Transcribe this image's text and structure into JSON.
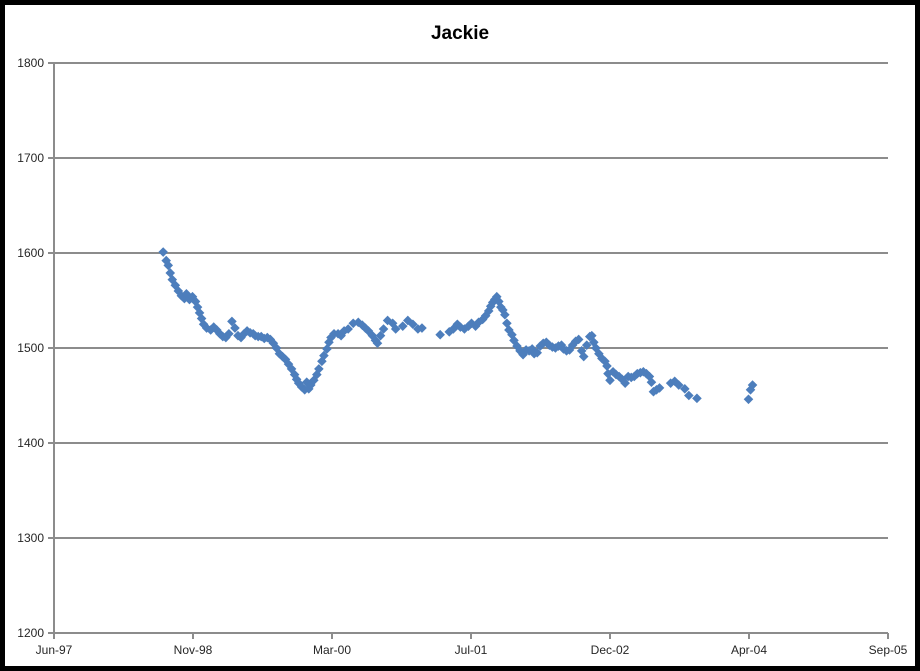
{
  "title": "Jackie",
  "colors": {
    "marker": "#4D7EBC",
    "grid": "#8C8C8C",
    "axis": "#8C8C8C",
    "text": "#262626",
    "frame": "#000000",
    "background": "#FFFFFF"
  },
  "chart_data": {
    "type": "scatter",
    "title": "Jackie",
    "xlabel": "",
    "ylabel": "",
    "legend": "none",
    "marker": "diamond",
    "grid": "horizontal",
    "x_tick_labels": [
      "Jun-97",
      "Nov-98",
      "Mar-00",
      "Jul-01",
      "Dec-02",
      "Apr-04",
      "Sep-05"
    ],
    "y_tick_labels": [
      "1200",
      "1300",
      "1400",
      "1500",
      "1600",
      "1700",
      "1800"
    ],
    "y_ticks": [
      1200,
      1300,
      1400,
      1500,
      1600,
      1700,
      1800
    ],
    "ylim": [
      1200,
      1800
    ],
    "xlim": [
      1997.42,
      2005.67
    ],
    "series": [
      {
        "name": "Jackie",
        "points": [
          [
            1998.5,
            1601
          ],
          [
            1998.53,
            1592
          ],
          [
            1998.55,
            1587
          ],
          [
            1998.57,
            1579
          ],
          [
            1998.59,
            1572
          ],
          [
            1998.62,
            1566
          ],
          [
            1998.65,
            1560
          ],
          [
            1998.68,
            1555
          ],
          [
            1998.71,
            1552
          ],
          [
            1998.73,
            1557
          ],
          [
            1998.76,
            1551
          ],
          [
            1998.79,
            1554
          ],
          [
            1998.82,
            1549
          ],
          [
            1998.84,
            1543
          ],
          [
            1998.86,
            1537
          ],
          [
            1998.88,
            1531
          ],
          [
            1998.9,
            1525
          ],
          [
            1998.93,
            1521
          ],
          [
            1998.97,
            1519
          ],
          [
            1999.0,
            1522
          ],
          [
            1999.03,
            1519
          ],
          [
            1999.06,
            1515
          ],
          [
            1999.09,
            1512
          ],
          [
            1999.12,
            1511
          ],
          [
            1999.15,
            1515
          ],
          [
            1999.18,
            1528
          ],
          [
            1999.21,
            1521
          ],
          [
            1999.24,
            1513
          ],
          [
            1999.27,
            1511
          ],
          [
            1999.3,
            1515
          ],
          [
            1999.33,
            1518
          ],
          [
            1999.36,
            1516
          ],
          [
            1999.39,
            1515
          ],
          [
            1999.41,
            1513
          ],
          [
            1999.44,
            1512
          ],
          [
            1999.47,
            1512
          ],
          [
            1999.5,
            1510
          ],
          [
            1999.53,
            1511
          ],
          [
            1999.56,
            1509
          ],
          [
            1999.59,
            1505
          ],
          [
            1999.62,
            1500
          ],
          [
            1999.65,
            1494
          ],
          [
            1999.68,
            1491
          ],
          [
            1999.71,
            1488
          ],
          [
            1999.74,
            1483
          ],
          [
            1999.77,
            1478
          ],
          [
            1999.8,
            1472
          ],
          [
            1999.82,
            1467
          ],
          [
            1999.84,
            1463
          ],
          [
            1999.87,
            1459
          ],
          [
            1999.9,
            1456
          ],
          [
            1999.92,
            1464
          ],
          [
            1999.94,
            1457
          ],
          [
            1999.96,
            1461
          ],
          [
            1999.99,
            1466
          ],
          [
            2000.02,
            1472
          ],
          [
            2000.04,
            1478
          ],
          [
            2000.07,
            1486
          ],
          [
            2000.09,
            1492
          ],
          [
            2000.12,
            1499
          ],
          [
            2000.14,
            1506
          ],
          [
            2000.16,
            1511
          ],
          [
            2000.19,
            1515
          ],
          [
            2000.23,
            1515
          ],
          [
            2000.26,
            1513
          ],
          [
            2000.29,
            1518
          ],
          [
            2000.33,
            1520
          ],
          [
            2000.38,
            1526
          ],
          [
            2000.43,
            1527
          ],
          [
            2000.47,
            1524
          ],
          [
            2000.5,
            1521
          ],
          [
            2000.53,
            1518
          ],
          [
            2000.57,
            1513
          ],
          [
            2000.6,
            1508
          ],
          [
            2000.62,
            1505
          ],
          [
            2000.65,
            1513
          ],
          [
            2000.68,
            1520
          ],
          [
            2000.72,
            1529
          ],
          [
            2000.77,
            1526
          ],
          [
            2000.8,
            1520
          ],
          [
            2000.87,
            1523
          ],
          [
            2000.92,
            1529
          ],
          [
            2000.97,
            1525
          ],
          [
            2001.02,
            1520
          ],
          [
            2001.06,
            1521
          ],
          [
            2001.24,
            1514
          ],
          [
            2001.33,
            1517
          ],
          [
            2001.37,
            1520
          ],
          [
            2001.41,
            1525
          ],
          [
            2001.44,
            1522
          ],
          [
            2001.48,
            1520
          ],
          [
            2001.52,
            1523
          ],
          [
            2001.55,
            1526
          ],
          [
            2001.59,
            1523
          ],
          [
            2001.62,
            1527
          ],
          [
            2001.66,
            1530
          ],
          [
            2001.69,
            1534
          ],
          [
            2001.72,
            1539
          ],
          [
            2001.74,
            1544
          ],
          [
            2001.76,
            1548
          ],
          [
            2001.78,
            1551
          ],
          [
            2001.8,
            1554
          ],
          [
            2001.82,
            1549
          ],
          [
            2001.84,
            1543
          ],
          [
            2001.86,
            1540
          ],
          [
            2001.88,
            1535
          ],
          [
            2001.9,
            1526
          ],
          [
            2001.92,
            1519
          ],
          [
            2001.95,
            1514
          ],
          [
            2001.97,
            1508
          ],
          [
            2002.0,
            1502
          ],
          [
            2002.03,
            1497
          ],
          [
            2002.06,
            1493
          ],
          [
            2002.09,
            1498
          ],
          [
            2002.12,
            1497
          ],
          [
            2002.15,
            1499
          ],
          [
            2002.17,
            1494
          ],
          [
            2002.2,
            1495
          ],
          [
            2002.23,
            1502
          ],
          [
            2002.26,
            1505
          ],
          [
            2002.29,
            1506
          ],
          [
            2002.32,
            1503
          ],
          [
            2002.35,
            1501
          ],
          [
            2002.38,
            1500
          ],
          [
            2002.41,
            1502
          ],
          [
            2002.44,
            1503
          ],
          [
            2002.46,
            1499
          ],
          [
            2002.49,
            1497
          ],
          [
            2002.52,
            1498
          ],
          [
            2002.55,
            1503
          ],
          [
            2002.58,
            1507
          ],
          [
            2002.61,
            1509
          ],
          [
            2002.64,
            1497
          ],
          [
            2002.66,
            1491
          ],
          [
            2002.69,
            1503
          ],
          [
            2002.72,
            1512
          ],
          [
            2002.74,
            1513
          ],
          [
            2002.76,
            1506
          ],
          [
            2002.78,
            1500
          ],
          [
            2002.81,
            1494
          ],
          [
            2002.84,
            1489
          ],
          [
            2002.87,
            1486
          ],
          [
            2002.89,
            1481
          ],
          [
            2002.9,
            1473
          ],
          [
            2002.92,
            1466
          ],
          [
            2002.95,
            1475
          ],
          [
            2002.98,
            1472
          ],
          [
            2003.01,
            1470
          ],
          [
            2003.04,
            1467
          ],
          [
            2003.07,
            1463
          ],
          [
            2003.1,
            1470
          ],
          [
            2003.13,
            1469
          ],
          [
            2003.16,
            1470
          ],
          [
            2003.19,
            1473
          ],
          [
            2003.22,
            1474
          ],
          [
            2003.25,
            1475
          ],
          [
            2003.28,
            1473
          ],
          [
            2003.31,
            1470
          ],
          [
            2003.33,
            1464
          ],
          [
            2003.35,
            1454
          ],
          [
            2003.38,
            1456
          ],
          [
            2003.41,
            1458
          ],
          [
            2003.52,
            1463
          ],
          [
            2003.56,
            1465
          ],
          [
            2003.6,
            1461
          ],
          [
            2003.66,
            1457
          ],
          [
            2003.7,
            1450
          ],
          [
            2003.78,
            1447
          ],
          [
            2004.29,
            1446
          ],
          [
            2004.31,
            1456
          ],
          [
            2004.33,
            1461
          ]
        ]
      }
    ]
  }
}
